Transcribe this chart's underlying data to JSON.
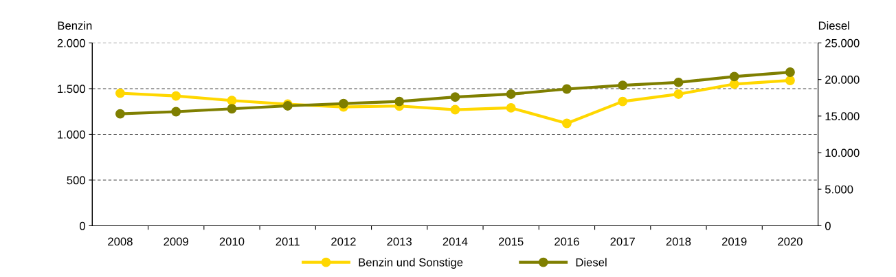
{
  "chart_data": {
    "type": "line",
    "ylabel": "Benzin",
    "y2label": "Diesel",
    "categories": [
      "2008",
      "2009",
      "2010",
      "2011",
      "2012",
      "2013",
      "2014",
      "2015",
      "2016",
      "2017",
      "2018",
      "2019",
      "2020"
    ],
    "series": [
      {
        "name": "Benzin und Sonstige",
        "color": "#ffd700",
        "values": [
          1450,
          1420,
          1370,
          1330,
          1300,
          1310,
          1270,
          1290,
          1120,
          1360,
          1440,
          1550,
          1590
        ]
      },
      {
        "name": "Diesel",
        "color": "#7f7f00",
        "axis": "y2",
        "values": [
          15300,
          15600,
          16000,
          16400,
          16700,
          17000,
          17600,
          18000,
          18700,
          19200,
          19600,
          20400,
          21000
        ]
      }
    ],
    "ylim": [
      0,
      2000
    ],
    "yticks": [
      0,
      500,
      {
        "value": 1000,
        "label": "1.000"
      },
      {
        "value": 1500,
        "label": "1.500"
      },
      {
        "value": 2000,
        "label": "2.000"
      }
    ],
    "y2lim": [
      0,
      25000
    ],
    "y2ticks": [
      0,
      {
        "value": 5000,
        "label": "5.000"
      },
      {
        "value": 10000,
        "label": "10.000"
      },
      {
        "value": 15000,
        "label": "15.000"
      },
      {
        "value": 20000,
        "label": "20.000"
      },
      {
        "value": 25000,
        "label": "25.000"
      }
    ],
    "grid": "y",
    "legend": "bottom",
    "marker": "circle",
    "line_style": "solid"
  }
}
